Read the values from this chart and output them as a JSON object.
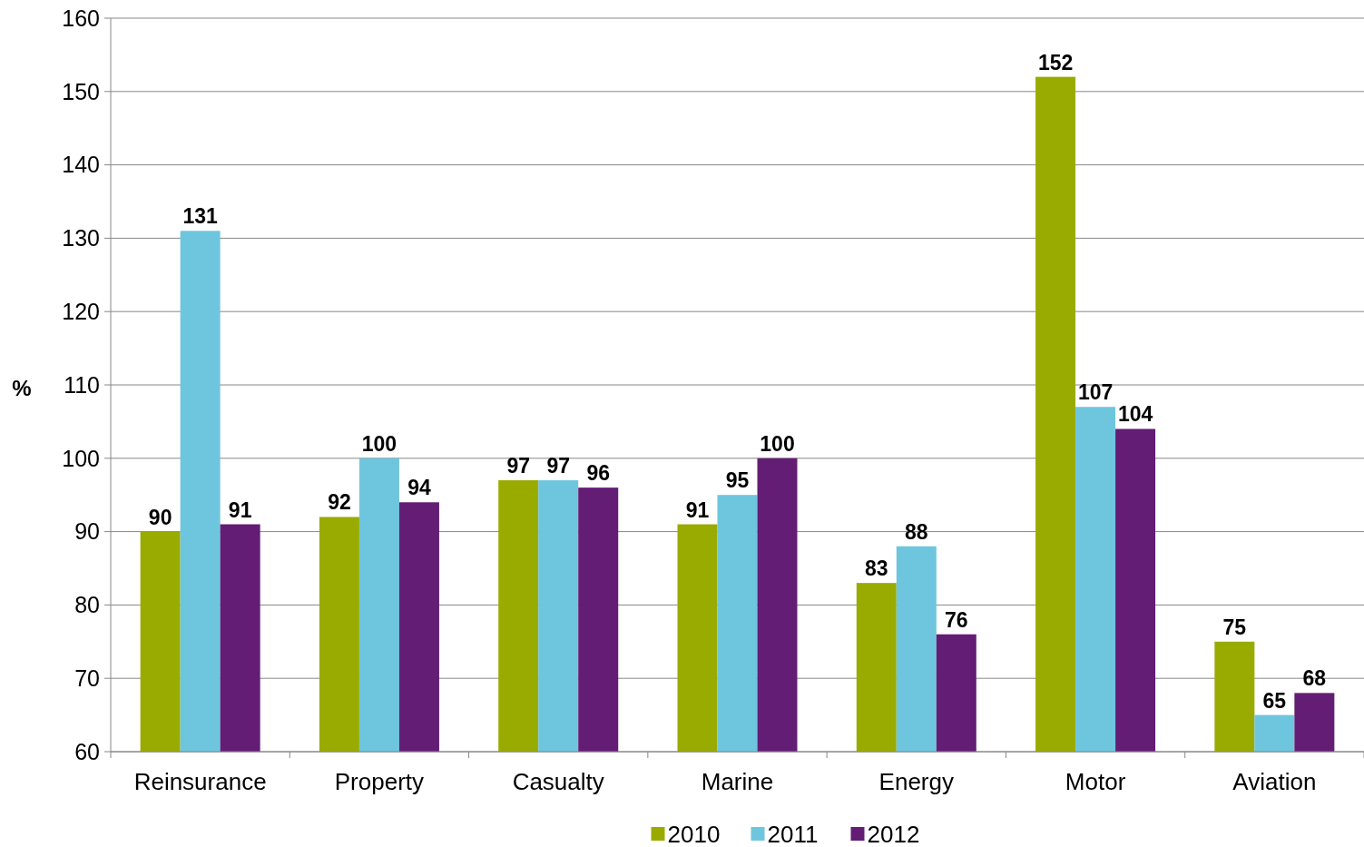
{
  "chart_data": {
    "type": "bar",
    "ylabel": "%",
    "categories": [
      "Reinsurance",
      "Property",
      "Casualty",
      "Marine",
      "Energy",
      "Motor",
      "Aviation"
    ],
    "series": [
      {
        "name": "2010",
        "color": "#9aab00",
        "values": [
          90,
          92,
          97,
          91,
          83,
          152,
          75
        ]
      },
      {
        "name": "2011",
        "color": "#6ec6de",
        "values": [
          131,
          100,
          97,
          95,
          88,
          107,
          65
        ]
      },
      {
        "name": "2012",
        "color": "#631d74",
        "values": [
          91,
          94,
          96,
          100,
          76,
          104,
          68
        ]
      }
    ],
    "ylim": [
      60,
      160
    ],
    "yticks": [
      60,
      70,
      80,
      90,
      100,
      110,
      120,
      130,
      140,
      150,
      160
    ],
    "grid": "y",
    "legend": "bottom",
    "data_labels": true
  }
}
